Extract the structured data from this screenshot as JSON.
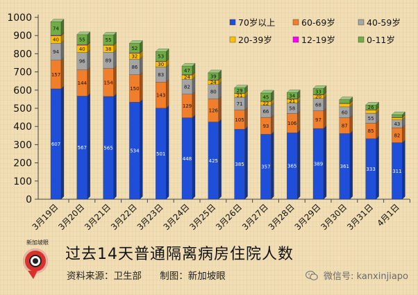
{
  "title": "过去14天普通隔离病房住院人数",
  "source_label": "资料来源：卫生部",
  "maker_label": "制图：新加坡眼",
  "logo_text": "新加坡眼",
  "watermark": "微信号: kanxinjiapo",
  "chart_data": {
    "type": "bar",
    "stacked": true,
    "ylim": [
      0,
      1000
    ],
    "yticks": [
      0,
      100,
      200,
      300,
      400,
      500,
      600,
      700,
      800,
      900,
      1000
    ],
    "categories": [
      "3月19日",
      "3月20日",
      "3月21日",
      "3月22日",
      "3月23日",
      "3月24日",
      "3月25日",
      "3月26日",
      "3月27日",
      "3月28日",
      "3月29日",
      "3月30日",
      "3月31日",
      "4月1日"
    ],
    "series": [
      {
        "name": "70岁以上",
        "color": "#1f4fd8",
        "values": [
          607,
          567,
          565,
          534,
          501,
          448,
          425,
          385,
          357,
          365,
          389,
          361,
          333,
          311
        ]
      },
      {
        "name": "60-69岁",
        "color": "#f07e2a",
        "values": [
          157,
          144,
          154,
          150,
          143,
          129,
          126,
          105,
          93,
          106,
          97,
          87,
          85,
          82
        ]
      },
      {
        "name": "40-59岁",
        "color": "#a5a5a5",
        "values": [
          94,
          96,
          89,
          86,
          83,
          82,
          80,
          71,
          66,
          58,
          68,
          60,
          55,
          43
        ]
      },
      {
        "name": "20-39岁",
        "color": "#ffc000",
        "values": [
          40,
          40,
          38,
          32,
          30,
          24,
          24,
          21,
          22,
          21,
          20,
          18,
          18,
          13
        ]
      },
      {
        "name": "12-19岁",
        "color": "#ff00ff",
        "values": [
          3,
          3,
          2,
          3,
          2,
          2,
          1,
          1,
          1,
          2,
          2,
          2,
          1,
          1
        ]
      },
      {
        "name": "0-11岁",
        "color": "#70ad47",
        "values": [
          74,
          55,
          55,
          52,
          53,
          47,
          39,
          29,
          45,
          34,
          33,
          19,
          26,
          15
        ]
      }
    ],
    "legend_position": "top-right",
    "grid": false
  }
}
